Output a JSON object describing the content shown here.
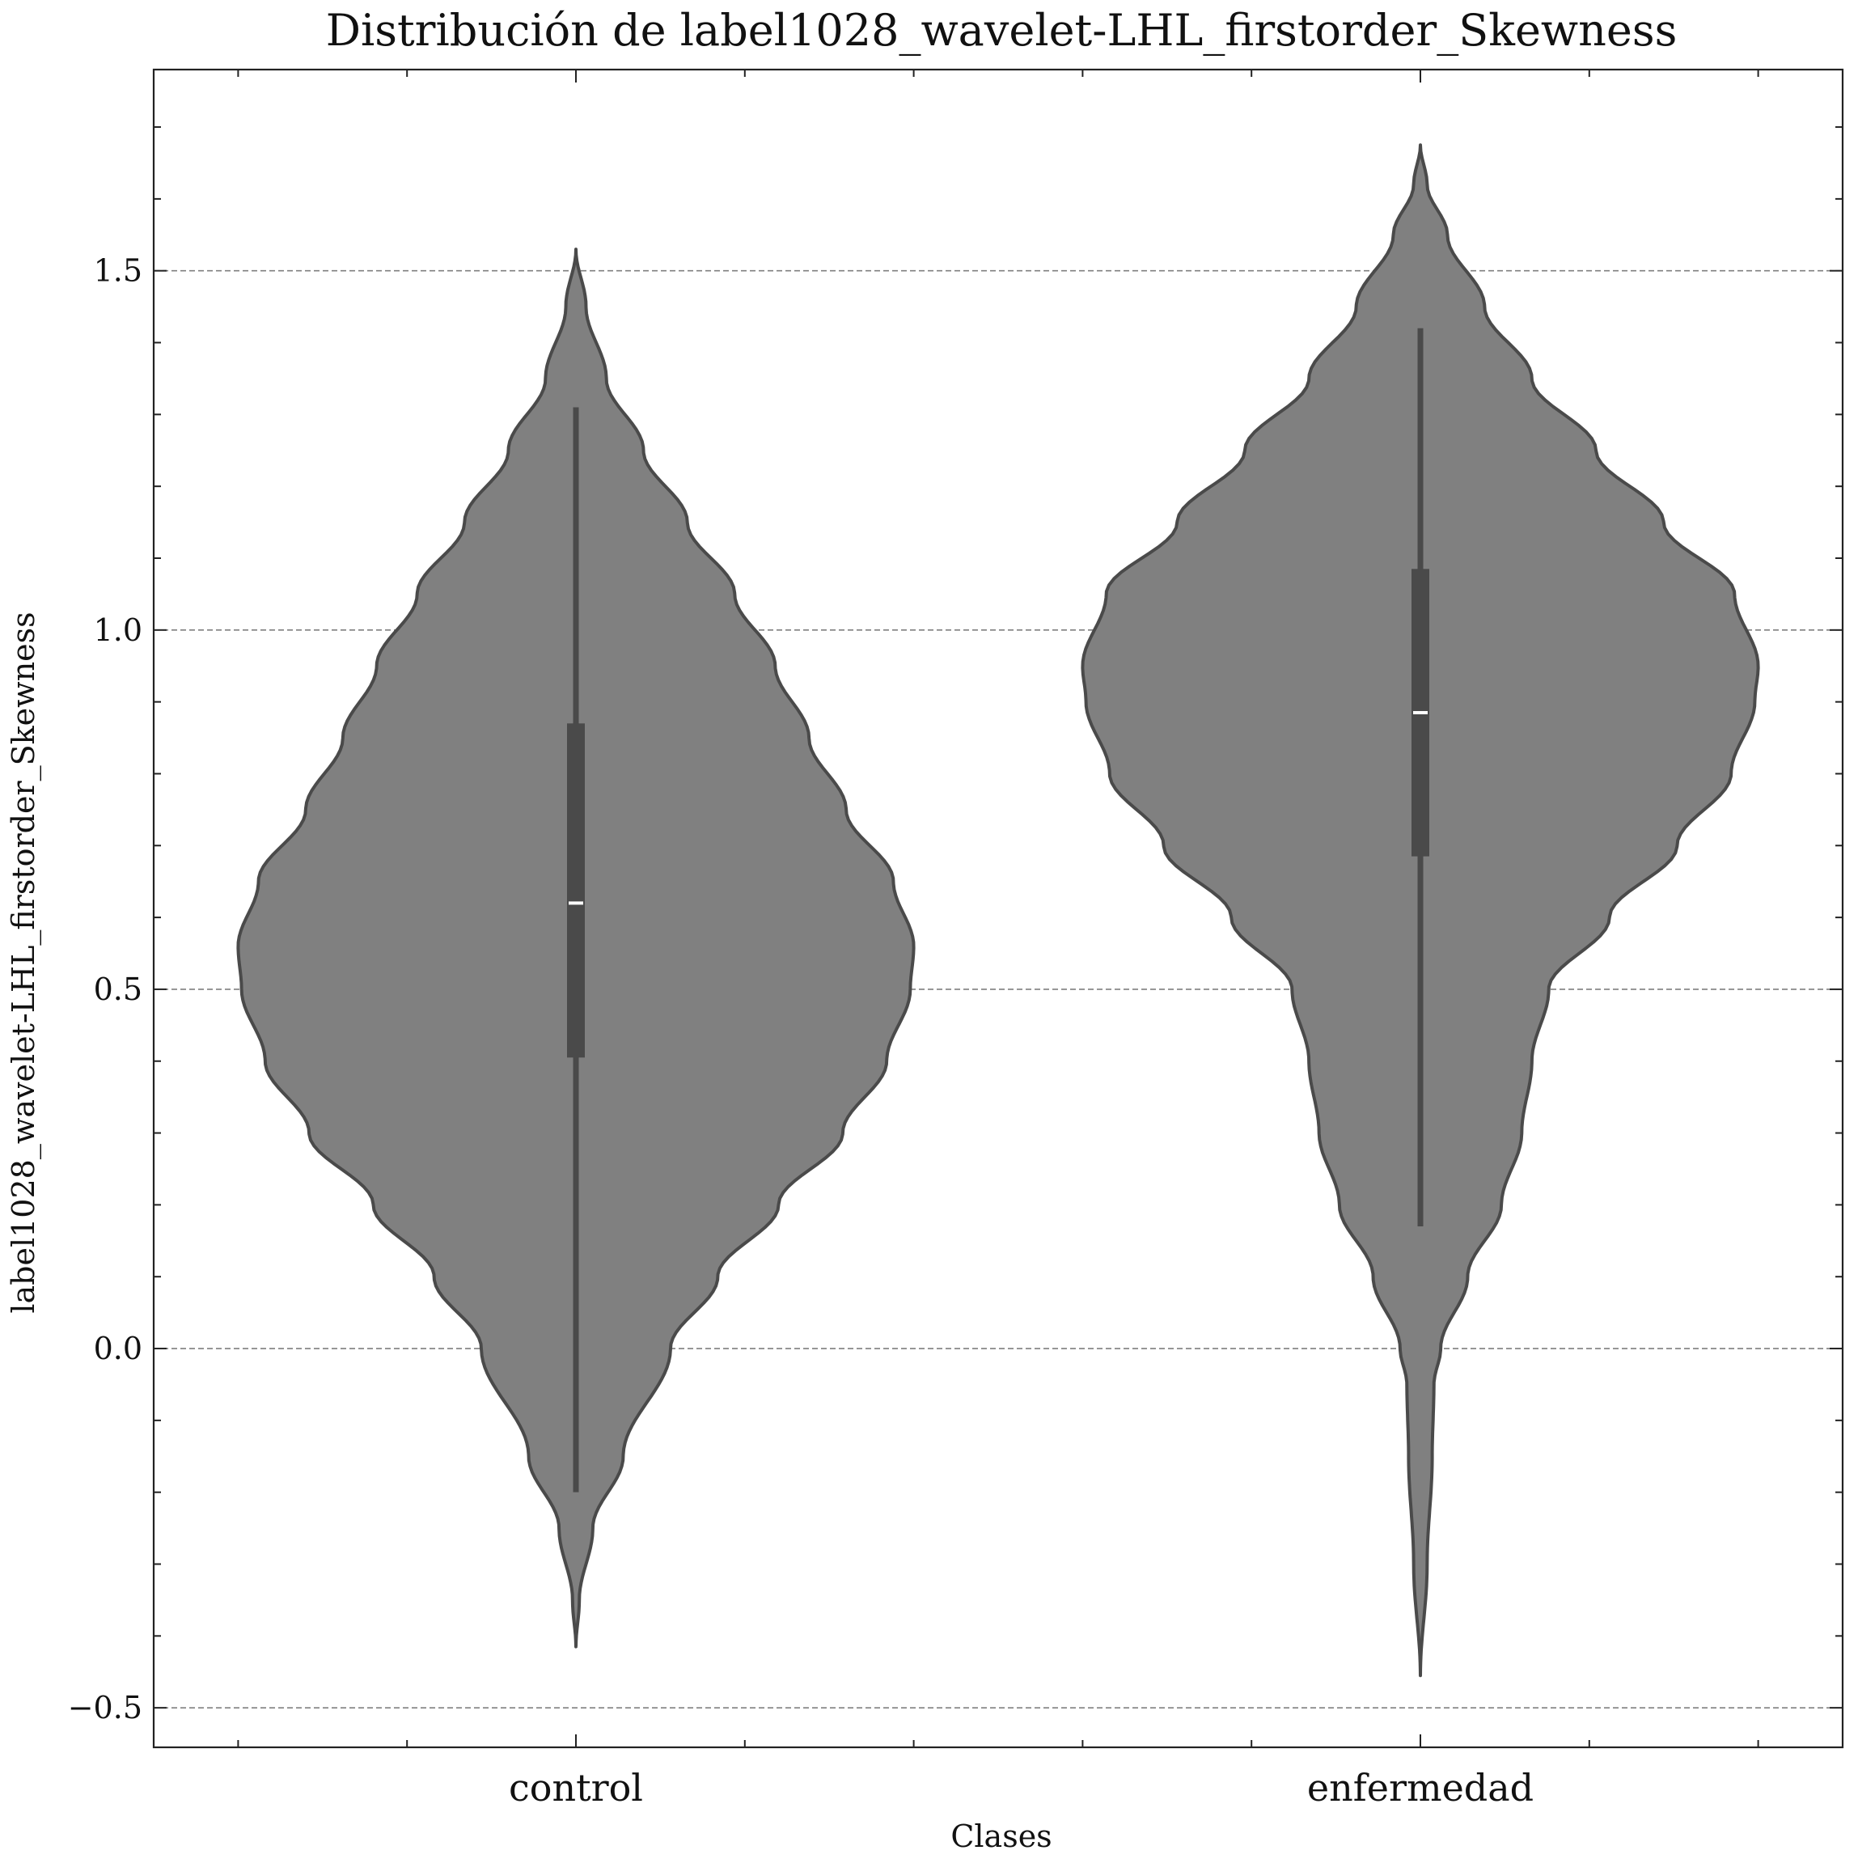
{
  "chart_data": {
    "type": "violin",
    "title": "Distribución de label1028_wavelet-LHL_firstorder_Skewness",
    "xlabel": "Clases",
    "ylabel": "label1028_wavelet-LHL_firstorder_Skewness",
    "categories": [
      "control",
      "enfermedad"
    ],
    "ylim": [
      -0.555,
      1.78
    ],
    "yticks": [
      -0.5,
      0.0,
      0.5,
      1.0,
      1.5
    ],
    "ytick_labels": [
      "−0.5",
      "0.0",
      "0.5",
      "1.0",
      "1.5"
    ],
    "grid": "horizontal dashed",
    "colors": {
      "fill": "#808080",
      "edge": "#4a4a4a",
      "box": "#4a4a4a",
      "median": "#ffffff",
      "grid": "#7f7f7f"
    },
    "violins": [
      {
        "category": "control",
        "min": -0.415,
        "max": 1.53,
        "whisker_low": -0.2,
        "whisker_high": 1.31,
        "q1": 0.405,
        "q3": 0.87,
        "median": 0.62,
        "density_profile": [
          [
            -0.415,
            0.0
          ],
          [
            -0.35,
            0.01
          ],
          [
            -0.25,
            0.05
          ],
          [
            -0.15,
            0.14
          ],
          [
            0.0,
            0.28
          ],
          [
            0.1,
            0.42
          ],
          [
            0.2,
            0.6
          ],
          [
            0.3,
            0.79
          ],
          [
            0.4,
            0.92
          ],
          [
            0.5,
            0.99
          ],
          [
            0.56,
            1.0
          ],
          [
            0.65,
            0.94
          ],
          [
            0.75,
            0.8
          ],
          [
            0.85,
            0.69
          ],
          [
            0.95,
            0.59
          ],
          [
            1.05,
            0.47
          ],
          [
            1.15,
            0.33
          ],
          [
            1.25,
            0.2
          ],
          [
            1.35,
            0.09
          ],
          [
            1.45,
            0.03
          ],
          [
            1.53,
            0.0
          ]
        ]
      },
      {
        "category": "enfermedad",
        "min": -0.455,
        "max": 1.675,
        "whisker_low": 0.17,
        "whisker_high": 1.42,
        "q1": 0.685,
        "q3": 1.085,
        "median": 0.885,
        "density_profile": [
          [
            -0.455,
            0.0
          ],
          [
            -0.3,
            0.02
          ],
          [
            -0.15,
            0.035
          ],
          [
            -0.05,
            0.04
          ],
          [
            0.0,
            0.06
          ],
          [
            0.1,
            0.14
          ],
          [
            0.2,
            0.24
          ],
          [
            0.3,
            0.3
          ],
          [
            0.4,
            0.33
          ],
          [
            0.5,
            0.38
          ],
          [
            0.6,
            0.56
          ],
          [
            0.7,
            0.76
          ],
          [
            0.8,
            0.92
          ],
          [
            0.9,
            0.99
          ],
          [
            0.95,
            1.0
          ],
          [
            1.05,
            0.93
          ],
          [
            1.15,
            0.72
          ],
          [
            1.25,
            0.52
          ],
          [
            1.35,
            0.33
          ],
          [
            1.45,
            0.19
          ],
          [
            1.55,
            0.08
          ],
          [
            1.62,
            0.02
          ],
          [
            1.675,
            0.0
          ]
        ]
      }
    ]
  }
}
